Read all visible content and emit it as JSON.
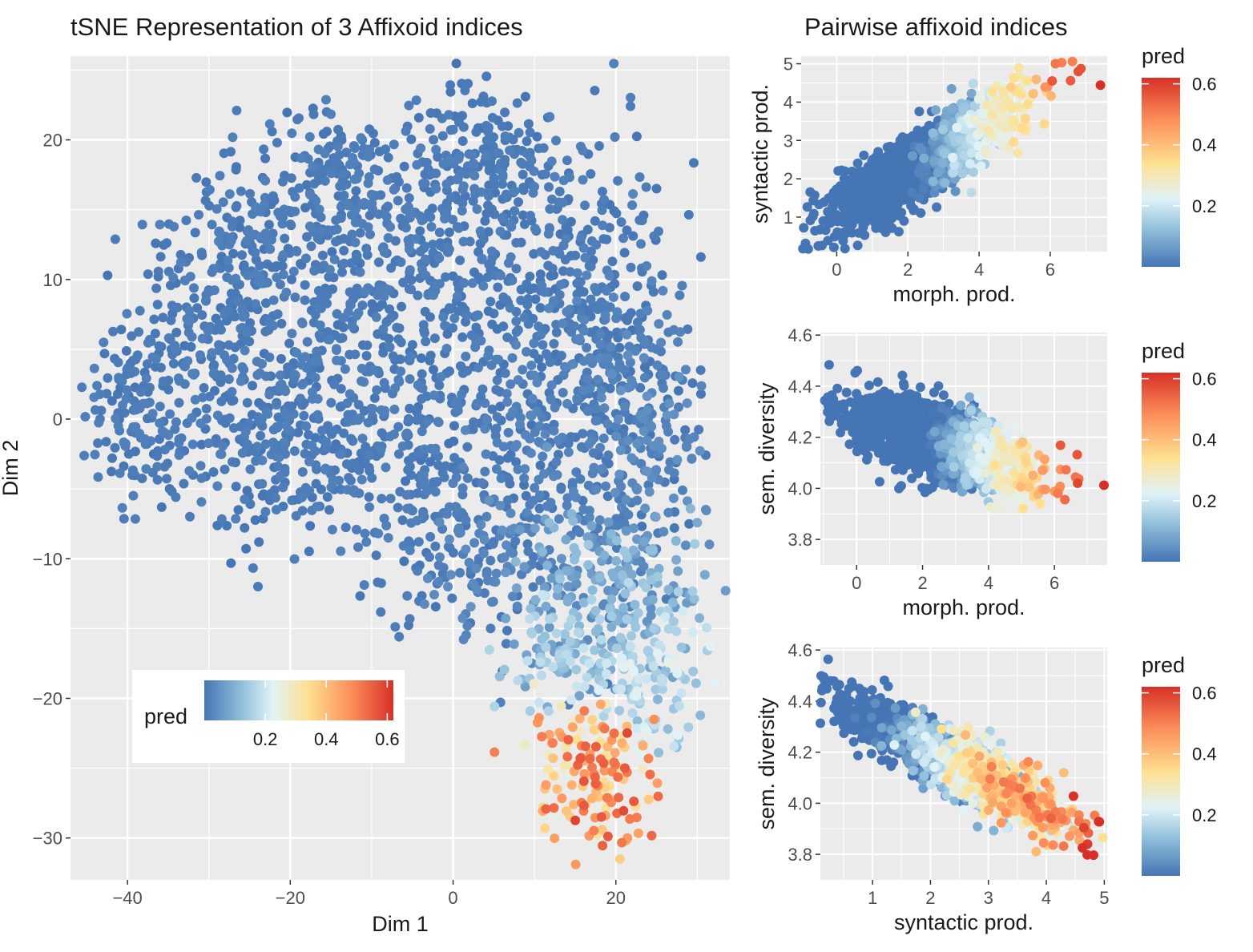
{
  "title_left": "tSNE Representation of 3 Affixoid indices",
  "title_right": "Pairwise affixoid indices",
  "colors": {
    "panel": "#ebebeb",
    "grid_major": "#ffffff",
    "point_scale": [
      "#4575b4",
      "#91bfdb",
      "#e0f3f8",
      "#fee090",
      "#fc8d59",
      "#d73027"
    ]
  },
  "chart_data": [
    {
      "type": "scatter",
      "title": "tSNE Representation of 3 Affixoid indices",
      "xlabel": "Dim 1",
      "ylabel": "Dim 2",
      "xlim": [
        -47,
        34
      ],
      "ylim": [
        -33,
        26
      ],
      "xticks": [
        -40,
        -20,
        0,
        20
      ],
      "yticks": [
        -30,
        -20,
        -10,
        0,
        10,
        20
      ],
      "color_variable": "pred",
      "color_range": [
        0,
        0.62
      ],
      "legend_ticks": [
        "0.2",
        "0.4",
        "0.6"
      ],
      "legend_position": "inside-bottom-left",
      "grid": true,
      "n_points_approx": 2500,
      "regions": [
        {
          "x_range": [
            -44,
            -10
          ],
          "y_range": [
            -5,
            20
          ],
          "pred": [
            0.0,
            0.02
          ]
        },
        {
          "x_range": [
            -10,
            28
          ],
          "y_range": [
            -8,
            23
          ],
          "pred": [
            0.0,
            0.03
          ]
        },
        {
          "x_range": [
            10,
            29
          ],
          "y_range": [
            -20,
            -8
          ],
          "pred": [
            0.02,
            0.18
          ]
        },
        {
          "x_range": [
            10,
            26
          ],
          "y_range": [
            -31,
            -20
          ],
          "pred": [
            0.25,
            0.6
          ]
        }
      ]
    },
    {
      "type": "scatter",
      "xlabel": "morph. prod.",
      "ylabel": "syntactic prod.",
      "xlim": [
        -1,
        7.6
      ],
      "ylim": [
        0.1,
        5.2
      ],
      "xticks": [
        0,
        2,
        4,
        6
      ],
      "yticks": [
        1,
        2,
        3,
        4,
        5
      ],
      "color_variable": "pred",
      "legend_title": "pred",
      "legend_ticks": [
        "0.2",
        "0.4",
        "0.6"
      ],
      "legend_position": "right",
      "grid": true,
      "relationship": {
        "x_mean": 2.5,
        "x_sd": 1.3,
        "y_intercept": 1.1,
        "y_slope": 0.55,
        "y_noise": 0.45
      },
      "pred_increases_with": "x"
    },
    {
      "type": "scatter",
      "xlabel": "morph. prod.",
      "ylabel": "sem. diversity",
      "xlim": [
        -1.1,
        7.6
      ],
      "ylim": [
        3.7,
        4.61
      ],
      "xticks": [
        0,
        2,
        4,
        6
      ],
      "yticks": [
        3.8,
        4.0,
        4.2,
        4.4,
        4.6
      ],
      "color_variable": "pred",
      "legend_title": "pred",
      "legend_ticks": [
        "0.2",
        "0.4",
        "0.6"
      ],
      "legend_position": "right",
      "grid": true,
      "relationship": {
        "x_mean": 2.5,
        "x_sd": 1.3,
        "y_intercept": 4.28,
        "y_slope": -0.04,
        "y_noise": 0.07
      },
      "pred_increases_with": "x"
    },
    {
      "type": "scatter",
      "xlabel": "syntactic prod.",
      "ylabel": "sem. diversity",
      "xlim": [
        0.1,
        5.05
      ],
      "ylim": [
        3.7,
        4.61
      ],
      "xticks": [
        1,
        2,
        3,
        4,
        5
      ],
      "yticks": [
        3.8,
        4.0,
        4.2,
        4.4,
        4.6
      ],
      "color_variable": "pred",
      "legend_title": "pred",
      "legend_ticks": [
        "0.2",
        "0.4",
        "0.6"
      ],
      "legend_position": "right",
      "grid": true,
      "relationship": {
        "x_mean": 2.4,
        "x_sd": 0.9,
        "y_intercept": 4.45,
        "y_slope": -0.12,
        "y_noise": 0.06
      },
      "pred_increases_with": "x"
    }
  ]
}
